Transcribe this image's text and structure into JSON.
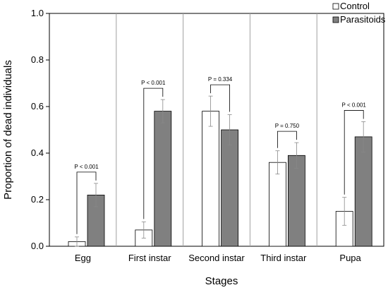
{
  "chart_data": {
    "type": "bar",
    "ylabel": "Proportion of dead individuals",
    "xlabel": "Stages",
    "ylim": [
      0,
      1.0
    ],
    "yticks": [
      "0.0",
      "0.2",
      "0.4",
      "0.6",
      "0.8",
      "1.0"
    ],
    "categories": [
      "Egg",
      "First instar",
      "Second instar",
      "Third instar",
      "Pupa"
    ],
    "series": [
      {
        "name": "Control",
        "color": "#ffffff",
        "values": [
          0.02,
          0.07,
          0.58,
          0.36,
          0.15
        ],
        "errors": [
          0.02,
          0.035,
          0.065,
          0.05,
          0.06
        ]
      },
      {
        "name": "Parasitoids",
        "color": "#808080",
        "values": [
          0.22,
          0.58,
          0.5,
          0.39,
          0.47
        ],
        "errors": [
          0.05,
          0.05,
          0.065,
          0.055,
          0.065
        ]
      }
    ],
    "p_values": [
      "P < 0.001",
      "P < 0.001",
      "P = 0.334",
      "P = 0.750",
      "P < 0.001"
    ],
    "legend_position": "top-right",
    "grid": false,
    "category_separators": true
  }
}
